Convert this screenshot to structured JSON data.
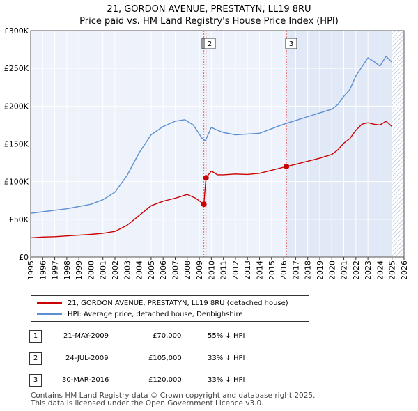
{
  "chart_data": {
    "type": "line",
    "title": "21, GORDON AVENUE, PRESTATYN, LL19 8RU",
    "subtitle": "Price paid vs. HM Land Registry's House Price Index (HPI)",
    "x_range": [
      1995,
      2026
    ],
    "ylim": [
      0,
      300000
    ],
    "x_ticks": [
      "1995",
      "1996",
      "1997",
      "1998",
      "1999",
      "2000",
      "2001",
      "2002",
      "2003",
      "2004",
      "2005",
      "2006",
      "2007",
      "2008",
      "2009",
      "2010",
      "2011",
      "2012",
      "2013",
      "2014",
      "2015",
      "2016",
      "2017",
      "2018",
      "2019",
      "2020",
      "2021",
      "2022",
      "2023",
      "2024",
      "2025",
      "2026"
    ],
    "y_ticks": [
      {
        "value": 0,
        "label": "£0"
      },
      {
        "value": 50000,
        "label": "£50K"
      },
      {
        "value": 100000,
        "label": "£100K"
      },
      {
        "value": 150000,
        "label": "£150K"
      },
      {
        "value": 200000,
        "label": "£200K"
      },
      {
        "value": 250000,
        "label": "£250K"
      },
      {
        "value": 300000,
        "label": "£300K"
      }
    ],
    "series": [
      {
        "name": "21, GORDON AVENUE, PRESTATYN, LL19 8RU (detached house)",
        "color": "#cc0000",
        "x": [
          1995,
          1996,
          1997,
          1998,
          1999,
          2000,
          2001,
          2002,
          2003,
          2004,
          2005,
          2006,
          2007,
          2008,
          2008.7,
          2009.38,
          2009.56,
          2010,
          2010.5,
          2011,
          2012,
          2013,
          2014,
          2015,
          2016.24,
          2017,
          2018,
          2019,
          2020,
          2020.5,
          2021,
          2021.5,
          2022,
          2022.5,
          2023,
          2023.5,
          2024,
          2024.5,
          2025
        ],
        "values": [
          25500,
          26500,
          27000,
          28000,
          29000,
          30000,
          31500,
          34000,
          42000,
          55000,
          68000,
          74000,
          78000,
          83000,
          78000,
          70000,
          105000,
          114000,
          109000,
          109000,
          110000,
          109500,
          111000,
          115000,
          120000,
          123000,
          127000,
          131000,
          136000,
          142000,
          151000,
          157000,
          168000,
          176000,
          178000,
          176000,
          175000,
          180000,
          173000
        ]
      },
      {
        "name": "HPI: Average price, detached house, Denbighshire",
        "color": "#5b8fd2",
        "x": [
          1995,
          1996,
          1997,
          1998,
          1999,
          2000,
          2001,
          2002,
          2003,
          2004,
          2005,
          2006,
          2007,
          2007.8,
          2008.5,
          2009.2,
          2009.5,
          2010,
          2010.5,
          2011,
          2012,
          2013,
          2014,
          2015,
          2016,
          2017,
          2018,
          2019,
          2020,
          2020.5,
          2021,
          2021.5,
          2022,
          2022.5,
          2023,
          2023.5,
          2024,
          2024.5,
          2025
        ],
        "values": [
          58000,
          60000,
          62000,
          64000,
          67000,
          70000,
          76000,
          86000,
          108000,
          138000,
          162000,
          173000,
          180000,
          182000,
          175000,
          158000,
          154000,
          172000,
          168000,
          165000,
          162000,
          163000,
          164000,
          170000,
          176000,
          181000,
          186000,
          191000,
          196000,
          202000,
          213000,
          222000,
          240000,
          252000,
          264000,
          259000,
          253000,
          266000,
          258000
        ]
      }
    ],
    "markers": [
      {
        "label": "1",
        "x": 2009.38,
        "value": 70000
      },
      {
        "label": "2",
        "x": 2009.56,
        "value": 105000
      },
      {
        "label": "3",
        "x": 2016.24,
        "value": 120000
      }
    ]
  },
  "legend": {
    "series1_label": "21, GORDON AVENUE, PRESTATYN, LL19 8RU (detached house)",
    "series2_label": "HPI: Average price, detached house, Denbighshire",
    "series1_color": "#cc0000",
    "series2_color": "#5b8fd2"
  },
  "table": {
    "rows": [
      {
        "num": "1",
        "date": "21-MAY-2009",
        "price": "£70,000",
        "hpi": "55% ↓ HPI"
      },
      {
        "num": "2",
        "date": "24-JUL-2009",
        "price": "£105,000",
        "hpi": "33% ↓ HPI"
      },
      {
        "num": "3",
        "date": "30-MAR-2016",
        "price": "£120,000",
        "hpi": "33% ↓ HPI"
      }
    ]
  },
  "footer": {
    "line1": "Contains HM Land Registry data © Crown copyright and database right 2025.",
    "line2": "This data is licensed under the Open Government Licence v3.0."
  }
}
